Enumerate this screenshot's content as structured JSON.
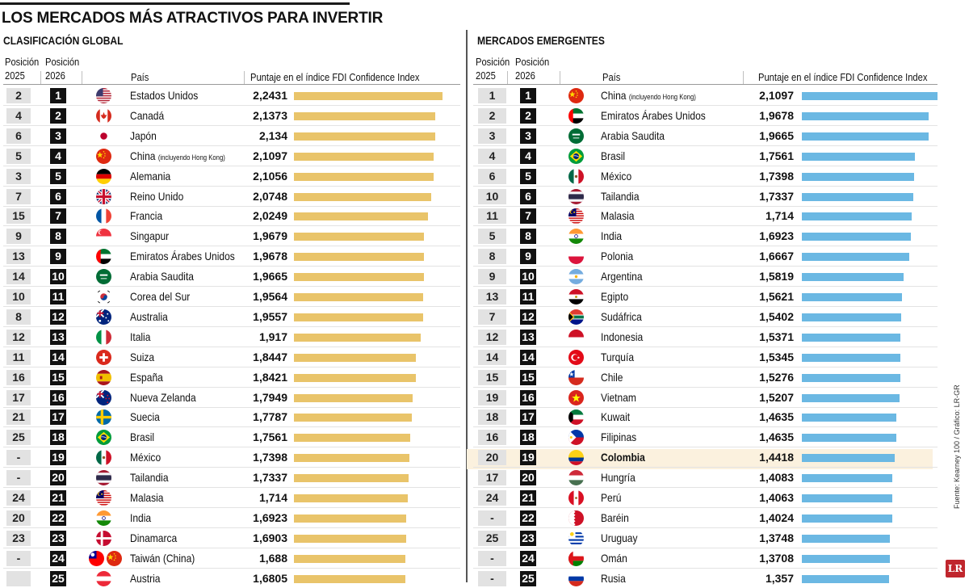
{
  "title": "LOS MERCADOS MÁS ATRACTIVOS PARA INVERTIR",
  "source": "Fuente: Kearney 100 / Gráfico: LR-GR",
  "logo": "LR",
  "headers": {
    "pos2025a": "Posición",
    "pos2025b": "2025",
    "pos2026a": "Posición",
    "pos2026b": "2026",
    "country": "País",
    "score": "Puntaje en el índice FDI Confidence Index"
  },
  "chart_data": [
    {
      "type": "bar",
      "title": "CLASIFICACIÓN GLOBAL",
      "xlim": [
        0,
        2.2431
      ],
      "bar_color": "#e9c46a",
      "rows": [
        {
          "pos2025": "2",
          "pos2026": "1",
          "country": "Estados Unidos",
          "score": "2,2431",
          "value": 2.2431,
          "flag": "us"
        },
        {
          "pos2025": "4",
          "pos2026": "2",
          "country": "Canadá",
          "score": "2,1373",
          "value": 2.1373,
          "flag": "ca"
        },
        {
          "pos2025": "6",
          "pos2026": "3",
          "country": "Japón",
          "score": "2,134",
          "value": 2.134,
          "flag": "jp"
        },
        {
          "pos2025": "5",
          "pos2026": "4",
          "country": "China",
          "note": "(incluyendo Hong Kong)",
          "score": "2,1097",
          "value": 2.1097,
          "flag": "cn"
        },
        {
          "pos2025": "3",
          "pos2026": "5",
          "country": "Alemania",
          "score": "2,1056",
          "value": 2.1056,
          "flag": "de"
        },
        {
          "pos2025": "7",
          "pos2026": "6",
          "country": "Reino Unido",
          "score": "2,0748",
          "value": 2.0748,
          "flag": "gb"
        },
        {
          "pos2025": "15",
          "pos2026": "7",
          "country": "Francia",
          "score": "2,0249",
          "value": 2.0249,
          "flag": "fr"
        },
        {
          "pos2025": "9",
          "pos2026": "8",
          "country": "Singapur",
          "score": "1,9679",
          "value": 1.9679,
          "flag": "sg"
        },
        {
          "pos2025": "13",
          "pos2026": "9",
          "country": "Emiratos Árabes Unidos",
          "score": "1,9678",
          "value": 1.9678,
          "flag": "ae"
        },
        {
          "pos2025": "14",
          "pos2026": "10",
          "country": "Arabia Saudita",
          "score": "1,9665",
          "value": 1.9665,
          "flag": "sa"
        },
        {
          "pos2025": "10",
          "pos2026": "11",
          "country": "Corea del Sur",
          "score": "1,9564",
          "value": 1.9564,
          "flag": "kr"
        },
        {
          "pos2025": "8",
          "pos2026": "12",
          "country": "Australia",
          "score": "1,9557",
          "value": 1.9557,
          "flag": "au"
        },
        {
          "pos2025": "12",
          "pos2026": "13",
          "country": "Italia",
          "score": "1,917",
          "value": 1.917,
          "flag": "it"
        },
        {
          "pos2025": "11",
          "pos2026": "14",
          "country": "Suiza",
          "score": "1,8447",
          "value": 1.8447,
          "flag": "ch"
        },
        {
          "pos2025": "16",
          "pos2026": "15",
          "country": "España",
          "score": "1,8421",
          "value": 1.8421,
          "flag": "es"
        },
        {
          "pos2025": "17",
          "pos2026": "16",
          "country": "Nueva Zelanda",
          "score": "1,7949",
          "value": 1.7949,
          "flag": "nz"
        },
        {
          "pos2025": "21",
          "pos2026": "17",
          "country": "Suecia",
          "score": "1,7787",
          "value": 1.7787,
          "flag": "se"
        },
        {
          "pos2025": "25",
          "pos2026": "18",
          "country": "Brasil",
          "score": "1,7561",
          "value": 1.7561,
          "flag": "br"
        },
        {
          "pos2025": "-",
          "pos2026": "19",
          "country": "México",
          "score": "1,7398",
          "value": 1.7398,
          "flag": "mx"
        },
        {
          "pos2025": "-",
          "pos2026": "20",
          "country": "Tailandia",
          "score": "1,7337",
          "value": 1.7337,
          "flag": "th"
        },
        {
          "pos2025": "24",
          "pos2026": "21",
          "country": "Malasia",
          "score": "1,714",
          "value": 1.714,
          "flag": "my"
        },
        {
          "pos2025": "20",
          "pos2026": "22",
          "country": "India",
          "score": "1,6923",
          "value": 1.6923,
          "flag": "in"
        },
        {
          "pos2025": "23",
          "pos2026": "23",
          "country": "Dinamarca",
          "score": "1,6903",
          "value": 1.6903,
          "flag": "dk"
        },
        {
          "pos2025": "-",
          "pos2026": "24",
          "country": "Taiwán (China)",
          "score": "1,688",
          "value": 1.688,
          "flag": "tw"
        },
        {
          "pos2025": "",
          "pos2026": "25",
          "country": "Austria",
          "score": "1,6805",
          "value": 1.6805,
          "flag": "at"
        }
      ]
    },
    {
      "type": "bar",
      "title": "MERCADOS EMERGENTES",
      "xlim": [
        0,
        2.1097
      ],
      "bar_color": "#6bb8e3",
      "highlight": "Colombia",
      "rows": [
        {
          "pos2025": "1",
          "pos2026": "1",
          "country": "China",
          "note": "(incluyendo Hong Kong)",
          "score": "2,1097",
          "value": 2.1097,
          "flag": "cn"
        },
        {
          "pos2025": "2",
          "pos2026": "2",
          "country": "Emiratos Árabes Unidos",
          "score": "1,9678",
          "value": 1.9678,
          "flag": "ae"
        },
        {
          "pos2025": "3",
          "pos2026": "3",
          "country": "Arabia Saudita",
          "score": "1,9665",
          "value": 1.9665,
          "flag": "sa"
        },
        {
          "pos2025": "4",
          "pos2026": "4",
          "country": "Brasil",
          "score": "1,7561",
          "value": 1.7561,
          "flag": "br"
        },
        {
          "pos2025": "6",
          "pos2026": "5",
          "country": "México",
          "score": "1,7398",
          "value": 1.7398,
          "flag": "mx"
        },
        {
          "pos2025": "10",
          "pos2026": "6",
          "country": "Tailandia",
          "score": "1,7337",
          "value": 1.7337,
          "flag": "th"
        },
        {
          "pos2025": "11",
          "pos2026": "7",
          "country": "Malasia",
          "score": "1,714",
          "value": 1.714,
          "flag": "my"
        },
        {
          "pos2025": "5",
          "pos2026": "8",
          "country": "India",
          "score": "1,6923",
          "value": 1.6923,
          "flag": "in"
        },
        {
          "pos2025": "8",
          "pos2026": "9",
          "country": "Polonia",
          "score": "1,6667",
          "value": 1.6667,
          "flag": "pl"
        },
        {
          "pos2025": "9",
          "pos2026": "10",
          "country": "Argentina",
          "score": "1,5819",
          "value": 1.5819,
          "flag": "ar"
        },
        {
          "pos2025": "13",
          "pos2026": "11",
          "country": "Egipto",
          "score": "1,5621",
          "value": 1.5621,
          "flag": "eg"
        },
        {
          "pos2025": "7",
          "pos2026": "12",
          "country": "Sudáfrica",
          "score": "1,5402",
          "value": 1.5402,
          "flag": "za"
        },
        {
          "pos2025": "12",
          "pos2026": "13",
          "country": "Indonesia",
          "score": "1,5371",
          "value": 1.5371,
          "flag": "id"
        },
        {
          "pos2025": "14",
          "pos2026": "14",
          "country": "Turquía",
          "score": "1,5345",
          "value": 1.5345,
          "flag": "tr"
        },
        {
          "pos2025": "15",
          "pos2026": "15",
          "country": "Chile",
          "score": "1,5276",
          "value": 1.5276,
          "flag": "cl"
        },
        {
          "pos2025": "19",
          "pos2026": "16",
          "country": "Vietnam",
          "score": "1,5207",
          "value": 1.5207,
          "flag": "vn"
        },
        {
          "pos2025": "18",
          "pos2026": "17",
          "country": "Kuwait",
          "score": "1,4635",
          "value": 1.4635,
          "flag": "kw"
        },
        {
          "pos2025": "16",
          "pos2026": "18",
          "country": "Filipinas",
          "score": "1,4635",
          "value": 1.4635,
          "flag": "ph"
        },
        {
          "pos2025": "20",
          "pos2026": "19",
          "country": "Colombia",
          "score": "1,4418",
          "value": 1.4418,
          "flag": "co"
        },
        {
          "pos2025": "17",
          "pos2026": "20",
          "country": "Hungría",
          "score": "1,4083",
          "value": 1.4083,
          "flag": "hu"
        },
        {
          "pos2025": "24",
          "pos2026": "21",
          "country": "Perú",
          "score": "1,4063",
          "value": 1.4063,
          "flag": "pe"
        },
        {
          "pos2025": "-",
          "pos2026": "22",
          "country": "Baréin",
          "score": "1,4024",
          "value": 1.4024,
          "flag": "bh"
        },
        {
          "pos2025": "25",
          "pos2026": "23",
          "country": "Uruguay",
          "score": "1,3748",
          "value": 1.3748,
          "flag": "uy"
        },
        {
          "pos2025": "-",
          "pos2026": "24",
          "country": "Omán",
          "score": "1,3708",
          "value": 1.3708,
          "flag": "om"
        },
        {
          "pos2025": "-",
          "pos2026": "25",
          "country": "Rusia",
          "score": "1,357",
          "value": 1.357,
          "flag": "ru"
        }
      ]
    }
  ]
}
